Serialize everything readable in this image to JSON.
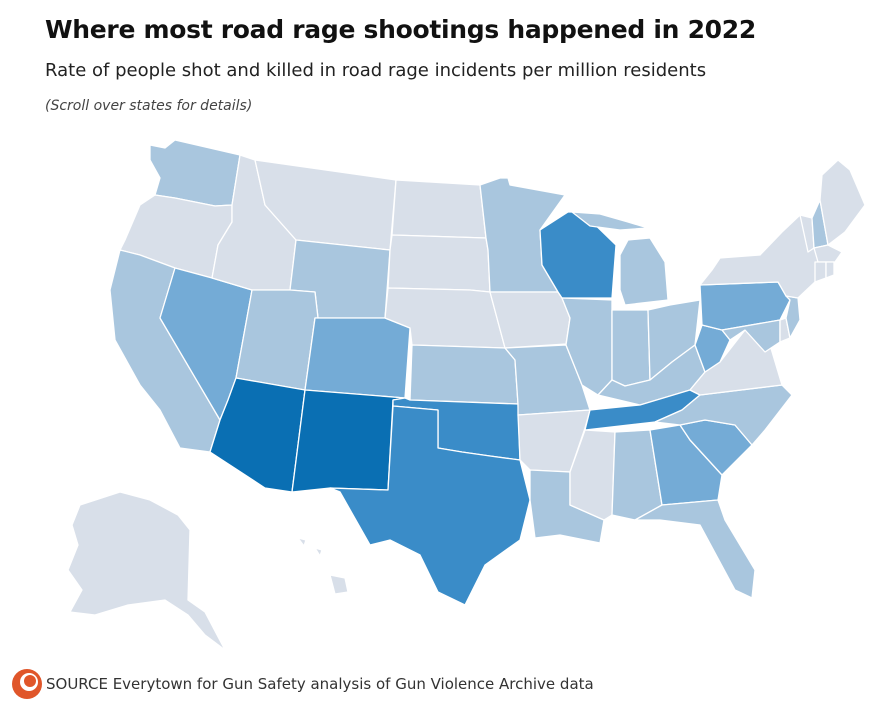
{
  "header": {
    "title": "Where most road rage shootings happened in 2022",
    "subtitle": "Rate of people shot and killed in road rage incidents per million residents",
    "note": "(Scroll over states for details)"
  },
  "footer": {
    "source": "SOURCE Everytown for Gun Safety analysis of Gun Violence Archive data",
    "logo_icon": "publisher-logo-icon"
  },
  "colors": {
    "level_0": "#d8dfe9",
    "level_1": "#a9c6de",
    "level_2": "#74abd6",
    "level_3": "#3a8cc8",
    "level_4": "#0a6fb3",
    "border": "#ffffff",
    "logo": "#e0562a"
  },
  "map_data": {
    "type": "choropleth",
    "shading_levels": 5,
    "states": [
      {
        "id": "WA",
        "level": 1
      },
      {
        "id": "OR",
        "level": 0
      },
      {
        "id": "CA",
        "level": 1
      },
      {
        "id": "NV",
        "level": 2
      },
      {
        "id": "ID",
        "level": 0
      },
      {
        "id": "MT",
        "level": 0
      },
      {
        "id": "WY",
        "level": 1
      },
      {
        "id": "UT",
        "level": 1
      },
      {
        "id": "AZ",
        "level": 4
      },
      {
        "id": "CO",
        "level": 2
      },
      {
        "id": "NM",
        "level": 4
      },
      {
        "id": "ND",
        "level": 0
      },
      {
        "id": "SD",
        "level": 0
      },
      {
        "id": "NE",
        "level": 0
      },
      {
        "id": "KS",
        "level": 1
      },
      {
        "id": "OK",
        "level": 3
      },
      {
        "id": "TX",
        "level": 3
      },
      {
        "id": "MN",
        "level": 1
      },
      {
        "id": "IA",
        "level": 0
      },
      {
        "id": "MO",
        "level": 1
      },
      {
        "id": "AR",
        "level": 0
      },
      {
        "id": "LA",
        "level": 1
      },
      {
        "id": "WI",
        "level": 3
      },
      {
        "id": "IL",
        "level": 1
      },
      {
        "id": "MI",
        "level": 1
      },
      {
        "id": "IN",
        "level": 1
      },
      {
        "id": "OH",
        "level": 1
      },
      {
        "id": "KY",
        "level": 1
      },
      {
        "id": "TN",
        "level": 3
      },
      {
        "id": "MS",
        "level": 0
      },
      {
        "id": "AL",
        "level": 1
      },
      {
        "id": "GA",
        "level": 2
      },
      {
        "id": "FL",
        "level": 1
      },
      {
        "id": "SC",
        "level": 2
      },
      {
        "id": "NC",
        "level": 1
      },
      {
        "id": "VA",
        "level": 0
      },
      {
        "id": "WV",
        "level": 2
      },
      {
        "id": "PA",
        "level": 2
      },
      {
        "id": "MD",
        "level": 1
      },
      {
        "id": "DE",
        "level": 0
      },
      {
        "id": "NJ",
        "level": 1
      },
      {
        "id": "NY",
        "level": 0
      },
      {
        "id": "CT",
        "level": 0
      },
      {
        "id": "RI",
        "level": 0
      },
      {
        "id": "MA",
        "level": 0
      },
      {
        "id": "VT",
        "level": 0
      },
      {
        "id": "NH",
        "level": 1
      },
      {
        "id": "ME",
        "level": 0
      },
      {
        "id": "AK",
        "level": 0
      },
      {
        "id": "HI",
        "level": 0
      }
    ]
  }
}
